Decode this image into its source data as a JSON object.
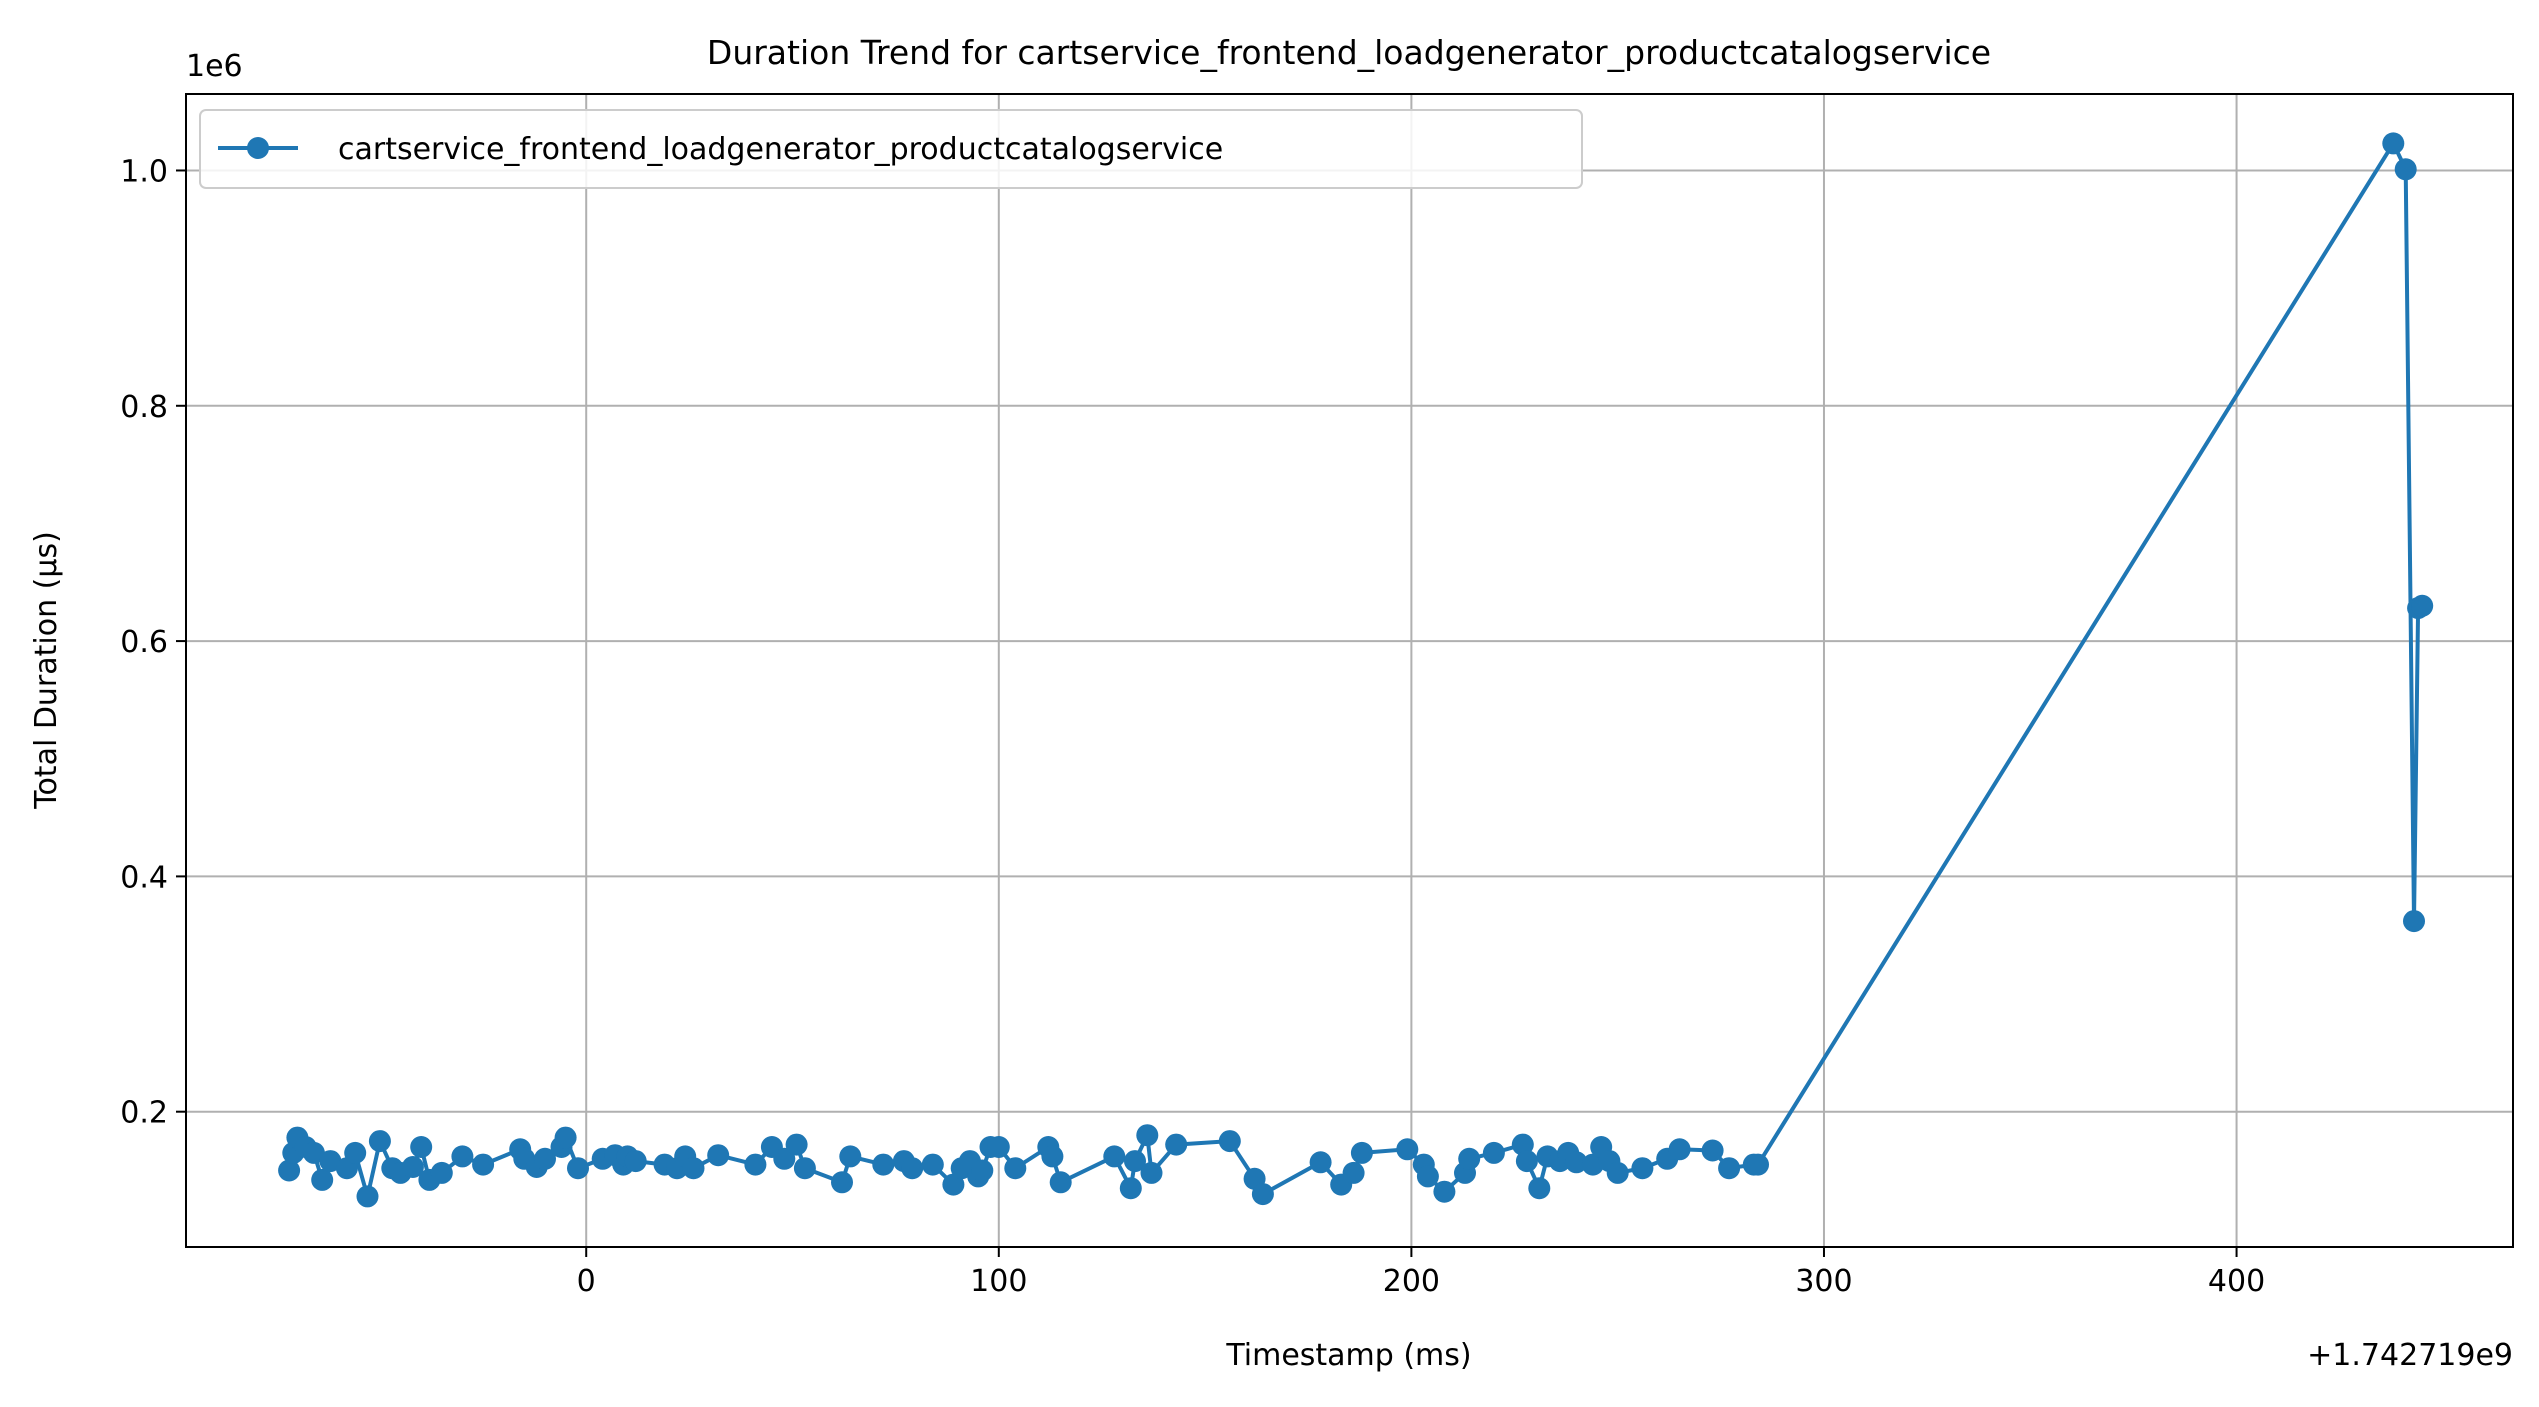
{
  "chart_data": {
    "type": "line",
    "title": "Duration Trend for cartservice_frontend_loadgenerator_productcatalogservice",
    "xlabel": "Timestamp (ms)",
    "ylabel": "Total Duration (µs)",
    "x_offset_label": "+1.742719e9",
    "y_scale_label": "1e6",
    "xlim": [
      -97,
      467
    ],
    "ylim": [
      85000,
      1065000
    ],
    "xticks": [
      0,
      100,
      200,
      300,
      400
    ],
    "xtick_labels": [
      "0",
      "100",
      "200",
      "300",
      "400"
    ],
    "yticks": [
      200000,
      400000,
      600000,
      800000,
      1000000
    ],
    "ytick_labels": [
      "0.2",
      "0.4",
      "0.6",
      "0.8",
      "1.0"
    ],
    "grid": true,
    "legend_position": "upper-left",
    "series": [
      {
        "name": "cartservice_frontend_loadgenerator_productcatalogservice",
        "color": "#1f77b4",
        "marker": "circle",
        "x": [
          -72,
          -71,
          -70,
          -68,
          -66,
          -64,
          -62,
          -58,
          -56,
          -53,
          -50,
          -47,
          -45,
          -42,
          -40,
          -38,
          -35,
          -30,
          -25,
          -16,
          -15,
          -12,
          -10,
          -6,
          -5,
          -2,
          4,
          7,
          9,
          10,
          12,
          19,
          22,
          24,
          26,
          32,
          41,
          45,
          48,
          51,
          53,
          62,
          64,
          72,
          77,
          79,
          84,
          89,
          91,
          93,
          95,
          96,
          98,
          100,
          104,
          112,
          113,
          115,
          128,
          132,
          133,
          136,
          137,
          143,
          156,
          162,
          164,
          178,
          183,
          186,
          188,
          199,
          203,
          204,
          208,
          213,
          214,
          220,
          227,
          228,
          231,
          233,
          236,
          238,
          240,
          244,
          246,
          248,
          250,
          256,
          262,
          265,
          273,
          277,
          283,
          284,
          438,
          441,
          443,
          444,
          445
        ],
        "y": [
          150000,
          165000,
          178000,
          170000,
          165000,
          142000,
          158000,
          152000,
          165000,
          128000,
          175000,
          152000,
          148000,
          153000,
          170000,
          142000,
          148000,
          162000,
          155000,
          168000,
          160000,
          153000,
          160000,
          170000,
          178000,
          152000,
          160000,
          163000,
          155000,
          162000,
          158000,
          155000,
          152000,
          162000,
          152000,
          163000,
          155000,
          170000,
          160000,
          172000,
          152000,
          140000,
          162000,
          155000,
          158000,
          152000,
          155000,
          138000,
          152000,
          158000,
          145000,
          150000,
          170000,
          170000,
          152000,
          170000,
          162000,
          140000,
          162000,
          135000,
          158000,
          180000,
          148000,
          172000,
          175000,
          143000,
          130000,
          157000,
          138000,
          148000,
          165000,
          168000,
          155000,
          145000,
          132000,
          148000,
          160000,
          165000,
          172000,
          158000,
          135000,
          162000,
          158000,
          165000,
          157000,
          155000,
          170000,
          158000,
          148000,
          152000,
          160000,
          168000,
          167000,
          152000,
          155000,
          155000,
          1023000,
          1001000,
          362000,
          628000,
          630000
        ]
      }
    ]
  }
}
